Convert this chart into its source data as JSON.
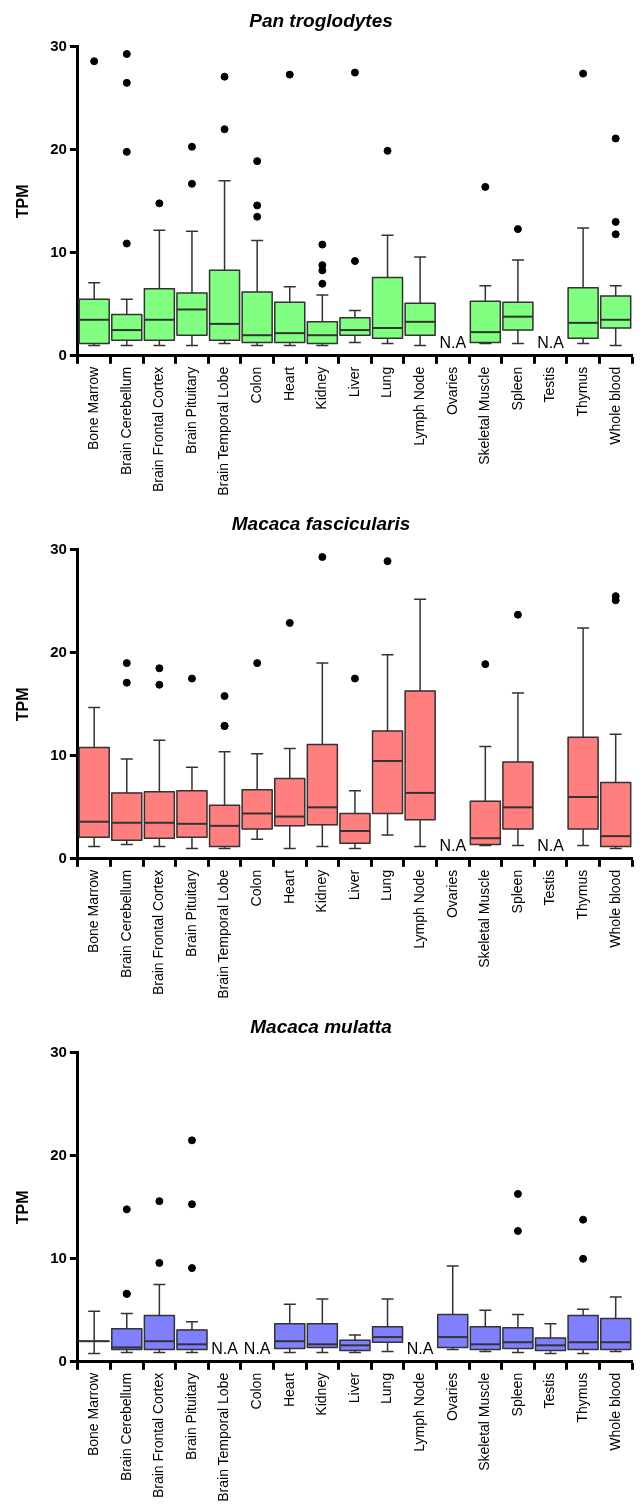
{
  "chart_data": [
    {
      "type": "box",
      "title": "Pan troglodytes",
      "ylabel": "TPM",
      "categories": [
        "Bone Marrow",
        "Brain Cerebellum",
        "Brain Frontal Cortex",
        "Brain Pituitary",
        "Brain Temporal Lobe",
        "Colon",
        "Heart",
        "Kidney",
        "Liver",
        "Lung",
        "Lymph Node",
        "Ovaries",
        "Skeletal Muscle",
        "Spleen",
        "Testis",
        "Thymus",
        "Whole blood"
      ],
      "ylim": [
        0,
        30
      ],
      "yticks": [
        0,
        10,
        20,
        30
      ],
      "grid": false,
      "legend": false,
      "series": [
        {
          "color": "#80ff80",
          "boxes": [
            {
              "low": 1.0,
              "q1": 1.2,
              "median": 3.5,
              "q3": 5.5,
              "high": 7.1,
              "outliers": [
                28.6
              ]
            },
            {
              "low": 1.0,
              "q1": 1.5,
              "median": 2.5,
              "q3": 4.0,
              "high": 5.5,
              "outliers": [
                29.3,
                26.5,
                19.8,
                10.9
              ]
            },
            {
              "low": 1.0,
              "q1": 1.5,
              "median": 3.5,
              "q3": 6.5,
              "high": 12.2,
              "outliers": [
                14.8
              ]
            },
            {
              "low": 1.0,
              "q1": 2.0,
              "median": 4.5,
              "q3": 6.1,
              "high": 12.1,
              "outliers": [
                20.3,
                16.7
              ]
            },
            {
              "low": 1.2,
              "q1": 1.5,
              "median": 3.1,
              "q3": 8.3,
              "high": 17.0,
              "outliers": [
                27.1,
                22.0
              ]
            },
            {
              "low": 1.0,
              "q1": 1.3,
              "median": 2.0,
              "q3": 6.2,
              "high": 11.2,
              "outliers": [
                18.9,
                14.6,
                13.5
              ]
            },
            {
              "low": 1.0,
              "q1": 1.3,
              "median": 2.2,
              "q3": 5.2,
              "high": 6.7,
              "outliers": [
                27.3
              ]
            },
            {
              "low": 1.0,
              "q1": 1.2,
              "median": 2.0,
              "q3": 3.3,
              "high": 5.9,
              "outliers": [
                10.8,
                8.8,
                8.3,
                7.0
              ]
            },
            {
              "low": 1.3,
              "q1": 2.0,
              "median": 2.5,
              "q3": 3.7,
              "high": 4.4,
              "outliers": [
                27.5,
                9.2
              ]
            },
            {
              "low": 1.2,
              "q1": 1.7,
              "median": 2.7,
              "q3": 7.6,
              "high": 11.7,
              "outliers": [
                19.9
              ]
            },
            {
              "low": 1.0,
              "q1": 2.0,
              "median": 3.3,
              "q3": 5.1,
              "high": 9.6
            },
            null,
            {
              "low": 1.2,
              "q1": 1.3,
              "median": 2.3,
              "q3": 5.3,
              "high": 6.8,
              "outliers": [
                16.4
              ]
            },
            {
              "low": 1.2,
              "q1": 2.5,
              "median": 3.8,
              "q3": 5.2,
              "high": 9.3,
              "outliers": [
                12.3
              ]
            },
            null,
            {
              "low": 1.2,
              "q1": 1.7,
              "median": 3.2,
              "q3": 6.6,
              "high": 12.4,
              "outliers": [
                27.4
              ]
            },
            {
              "low": 1.0,
              "q1": 2.7,
              "median": 3.5,
              "q3": 5.8,
              "high": 6.8,
              "outliers": [
                21.1,
                13.0,
                11.8
              ]
            }
          ]
        }
      ],
      "annotations": [
        "N.A",
        "N.A"
      ]
    },
    {
      "type": "box",
      "title": "Macaca fascicularis",
      "ylabel": "TPM",
      "categories": [
        "Bone Marrow",
        "Brain Cerebellum",
        "Brain Frontal Cortex",
        "Brain Pituitary",
        "Brain Temporal Lobe",
        "Colon",
        "Heart",
        "Kidney",
        "Liver",
        "Lung",
        "Lymph Node",
        "Ovaries",
        "Skeletal Muscle",
        "Spleen",
        "Testis",
        "Thymus",
        "Whole blood"
      ],
      "ylim": [
        0,
        30
      ],
      "yticks": [
        0,
        10,
        20,
        30
      ],
      "grid": false,
      "legend": false,
      "series": [
        {
          "color": "#ff7f7f",
          "boxes": [
            {
              "low": 1.2,
              "q1": 2.1,
              "median": 3.6,
              "q3": 10.8,
              "high": 14.7
            },
            {
              "low": 1.4,
              "q1": 1.8,
              "median": 3.5,
              "q3": 6.4,
              "high": 9.7,
              "outliers": [
                19.0,
                17.1
              ]
            },
            {
              "low": 1.2,
              "q1": 2.0,
              "median": 3.5,
              "q3": 6.5,
              "high": 11.5,
              "outliers": [
                18.5,
                16.9
              ]
            },
            {
              "low": 1.0,
              "q1": 2.1,
              "median": 3.4,
              "q3": 6.6,
              "high": 8.9,
              "outliers": [
                17.5
              ]
            },
            {
              "low": 1.0,
              "q1": 1.2,
              "median": 3.2,
              "q3": 5.2,
              "high": 10.4,
              "outliers": [
                15.8,
                12.9,
                12.9
              ]
            },
            {
              "low": 1.9,
              "q1": 2.9,
              "median": 4.4,
              "q3": 6.7,
              "high": 10.2,
              "outliers": [
                19.0
              ]
            },
            {
              "low": 1.0,
              "q1": 3.2,
              "median": 4.1,
              "q3": 7.8,
              "high": 10.7,
              "outliers": [
                22.9
              ]
            },
            {
              "low": 1.2,
              "q1": 3.3,
              "median": 5.0,
              "q3": 11.1,
              "high": 19.0,
              "outliers": [
                29.3
              ]
            },
            {
              "low": 1.0,
              "q1": 1.5,
              "median": 2.7,
              "q3": 4.4,
              "high": 6.6,
              "outliers": [
                17.5
              ]
            },
            {
              "low": 2.3,
              "q1": 4.4,
              "median": 9.5,
              "q3": 12.4,
              "high": 19.8,
              "outliers": [
                28.9
              ]
            },
            {
              "low": 1.2,
              "q1": 3.8,
              "median": 6.4,
              "q3": 16.3,
              "high": 25.2
            },
            null,
            {
              "low": 1.3,
              "q1": 1.4,
              "median": 2.0,
              "q3": 5.6,
              "high": 10.9,
              "outliers": [
                18.9
              ]
            },
            {
              "low": 1.3,
              "q1": 2.9,
              "median": 5.0,
              "q3": 9.4,
              "high": 16.1,
              "outliers": [
                23.7
              ]
            },
            null,
            {
              "low": 1.3,
              "q1": 2.9,
              "median": 6.0,
              "q3": 11.8,
              "high": 22.4
            },
            {
              "low": 1.0,
              "q1": 1.2,
              "median": 2.2,
              "q3": 7.4,
              "high": 12.1,
              "outliers": [
                25.1,
                25.5
              ]
            }
          ]
        }
      ],
      "annotations": [
        "N.A",
        "N.A"
      ]
    },
    {
      "type": "box",
      "title": "Macaca mulatta",
      "ylabel": "TPM",
      "categories": [
        "Bone Marrow",
        "Brain Cerebellum",
        "Brain Frontal Cortex",
        "Brain Pituitary",
        "Brain Temporal Lobe",
        "Colon",
        "Heart",
        "Kidney",
        "Liver",
        "Lung",
        "Lymph Node",
        "Ovaries",
        "Skeletal Muscle",
        "Spleen",
        "Testis",
        "Thymus",
        "Whole blood"
      ],
      "ylim": [
        0,
        30
      ],
      "yticks": [
        0,
        10,
        20,
        30
      ],
      "grid": false,
      "legend": false,
      "series": [
        {
          "color": "#8080ff",
          "boxes": [
            {
              "low": 0.8,
              "q1": 2.0,
              "median": 2.0,
              "q3": 2.0,
              "high": 4.9
            },
            {
              "low": 0.9,
              "q1": 1.2,
              "median": 1.4,
              "q3": 3.2,
              "high": 4.7,
              "outliers": [
                14.8,
                6.6,
                6.6
              ]
            },
            {
              "low": 0.9,
              "q1": 1.2,
              "median": 2.0,
              "q3": 4.5,
              "high": 7.5,
              "outliers": [
                15.6,
                9.6
              ]
            },
            {
              "low": 0.9,
              "q1": 1.2,
              "median": 1.7,
              "q3": 3.1,
              "high": 3.9,
              "outliers": [
                21.5,
                15.3,
                9.1
              ]
            },
            null,
            null,
            {
              "low": 0.9,
              "q1": 1.3,
              "median": 2.0,
              "q3": 3.7,
              "high": 5.6
            },
            {
              "low": 0.9,
              "q1": 1.4,
              "median": 1.7,
              "q3": 3.7,
              "high": 6.1
            },
            {
              "low": 0.9,
              "q1": 1.1,
              "median": 1.6,
              "q3": 2.1,
              "high": 2.6
            },
            {
              "low": 1.0,
              "q1": 1.9,
              "median": 2.4,
              "q3": 3.4,
              "high": 6.1
            },
            null,
            {
              "low": 1.2,
              "q1": 1.4,
              "median": 2.4,
              "q3": 4.6,
              "high": 9.3
            },
            {
              "low": 1.0,
              "q1": 1.2,
              "median": 1.7,
              "q3": 3.4,
              "high": 5.0
            },
            {
              "low": 0.9,
              "q1": 1.3,
              "median": 1.9,
              "q3": 3.3,
              "high": 4.6,
              "outliers": [
                16.3,
                12.7
              ]
            },
            {
              "low": 0.8,
              "q1": 1.1,
              "median": 1.6,
              "q3": 2.3,
              "high": 3.7
            },
            {
              "low": 0.8,
              "q1": 1.2,
              "median": 1.9,
              "q3": 4.5,
              "high": 5.1,
              "outliers": [
                13.8,
                10.0
              ]
            },
            {
              "low": 1.0,
              "q1": 1.2,
              "median": 1.9,
              "q3": 4.2,
              "high": 6.3
            }
          ]
        }
      ],
      "annotations": [
        "N.A",
        "N.A",
        "N.A"
      ]
    }
  ]
}
